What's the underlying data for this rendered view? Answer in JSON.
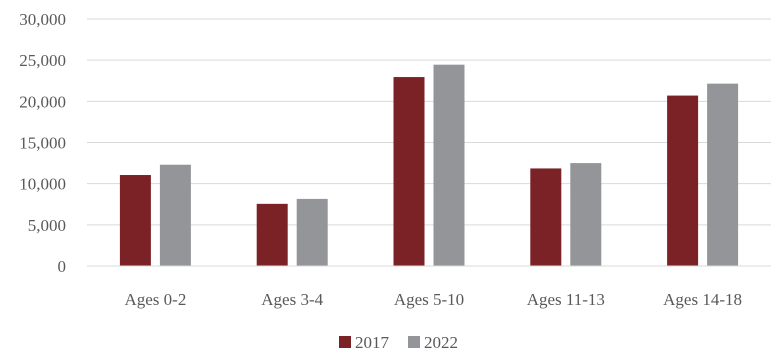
{
  "chart_data": {
    "type": "bar",
    "categories": [
      "Ages 0-2",
      "Ages 3-4",
      "Ages 5-10",
      "Ages 11-13",
      "Ages 14-18"
    ],
    "series": [
      {
        "name": "2017",
        "color": "#7b2227",
        "values": [
          11050,
          7550,
          22950,
          11850,
          20700
        ]
      },
      {
        "name": "2022",
        "color": "#939598",
        "values": [
          12300,
          8150,
          24450,
          12500,
          22150
        ]
      }
    ],
    "ylim": [
      0,
      30000
    ],
    "yticks": [
      "0",
      "5,000",
      "10,000",
      "15,000",
      "20,000",
      "25,000",
      "30,000"
    ],
    "ytick_values": [
      0,
      5000,
      10000,
      15000,
      20000,
      25000,
      30000
    ],
    "grid": true,
    "legend_position": "bottom-center",
    "title": "",
    "xlabel": "",
    "ylabel": ""
  }
}
